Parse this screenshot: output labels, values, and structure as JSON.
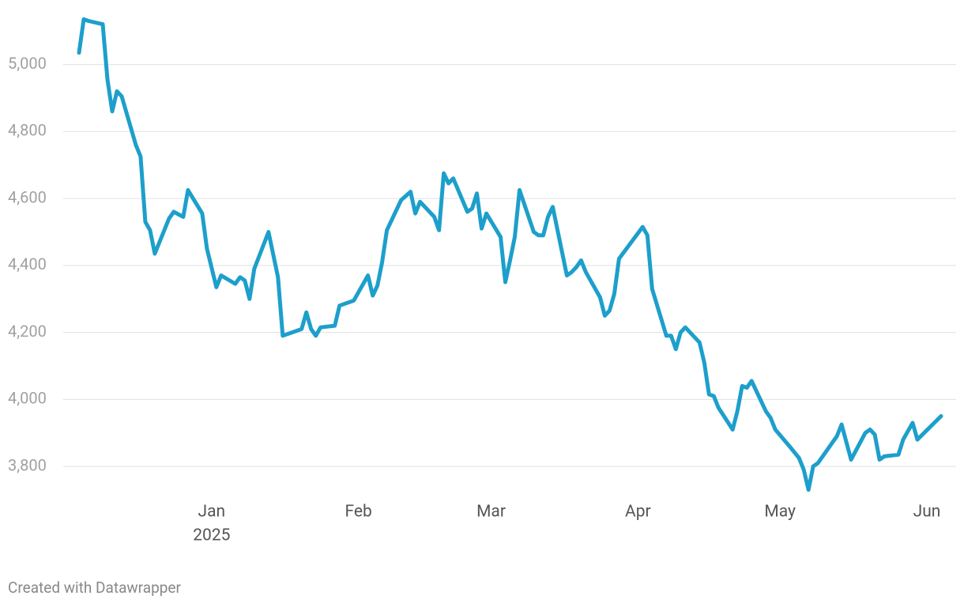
{
  "chart_data": {
    "type": "line",
    "x": [
      "2024-12-04",
      "2024-12-05",
      "2024-12-06",
      "2024-12-09",
      "2024-12-10",
      "2024-12-11",
      "2024-12-12",
      "2024-12-13",
      "2024-12-16",
      "2024-12-17",
      "2024-12-18",
      "2024-12-19",
      "2024-12-20",
      "2024-12-23",
      "2024-12-24",
      "2024-12-26",
      "2024-12-27",
      "2024-12-30",
      "2024-12-31",
      "2025-01-02",
      "2025-01-03",
      "2025-01-06",
      "2025-01-07",
      "2025-01-08",
      "2025-01-09",
      "2025-01-10",
      "2025-01-13",
      "2025-01-15",
      "2025-01-16",
      "2025-01-20",
      "2025-01-21",
      "2025-01-22",
      "2025-01-23",
      "2025-01-24",
      "2025-01-27",
      "2025-01-28",
      "2025-01-31",
      "2025-02-03",
      "2025-02-04",
      "2025-02-05",
      "2025-02-06",
      "2025-02-07",
      "2025-02-10",
      "2025-02-12",
      "2025-02-13",
      "2025-02-14",
      "2025-02-17",
      "2025-02-18",
      "2025-02-19",
      "2025-02-20",
      "2025-02-21",
      "2025-02-24",
      "2025-02-25",
      "2025-02-26",
      "2025-02-27",
      "2025-02-28",
      "2025-03-03",
      "2025-03-04",
      "2025-03-05",
      "2025-03-06",
      "2025-03-07",
      "2025-03-10",
      "2025-03-11",
      "2025-03-12",
      "2025-03-13",
      "2025-03-14",
      "2025-03-17",
      "2025-03-18",
      "2025-03-19",
      "2025-03-20",
      "2025-03-21",
      "2025-03-24",
      "2025-03-25",
      "2025-03-26",
      "2025-03-27",
      "2025-03-28",
      "2025-04-02",
      "2025-04-03",
      "2025-04-04",
      "2025-04-07",
      "2025-04-08",
      "2025-04-09",
      "2025-04-10",
      "2025-04-11",
      "2025-04-14",
      "2025-04-15",
      "2025-04-16",
      "2025-04-17",
      "2025-04-18",
      "2025-04-21",
      "2025-04-22",
      "2025-04-23",
      "2025-04-24",
      "2025-04-25",
      "2025-04-28",
      "2025-04-29",
      "2025-04-30",
      "2025-05-03",
      "2025-05-05",
      "2025-05-06",
      "2025-05-07",
      "2025-05-08",
      "2025-05-09",
      "2025-05-12",
      "2025-05-13",
      "2025-05-14",
      "2025-05-16",
      "2025-05-19",
      "2025-05-20",
      "2025-05-21",
      "2025-05-22",
      "2025-05-23",
      "2025-05-26",
      "2025-05-27",
      "2025-05-29",
      "2025-05-30",
      "2025-06-04"
    ],
    "series": [
      {
        "color": "#1d9fcb",
        "values": [
          5035,
          5135,
          5130,
          5120,
          4955,
          4860,
          4920,
          4905,
          4760,
          4725,
          4530,
          4505,
          4435,
          4540,
          4560,
          4545,
          4625,
          4555,
          4450,
          4335,
          4370,
          4345,
          4365,
          4355,
          4300,
          4390,
          4500,
          4365,
          4190,
          4210,
          4260,
          4210,
          4190,
          4215,
          4220,
          4280,
          4295,
          4370,
          4310,
          4340,
          4410,
          4505,
          4595,
          4620,
          4555,
          4590,
          4545,
          4505,
          4675,
          4645,
          4660,
          4560,
          4570,
          4615,
          4510,
          4555,
          4485,
          4350,
          4415,
          4485,
          4625,
          4500,
          4490,
          4490,
          4545,
          4575,
          4370,
          4380,
          4395,
          4415,
          4380,
          4305,
          4250,
          4265,
          4315,
          4420,
          4515,
          4490,
          4330,
          4190,
          4190,
          4150,
          4200,
          4215,
          4170,
          4110,
          4015,
          4010,
          3975,
          3910,
          3965,
          4040,
          4035,
          4055,
          3965,
          3945,
          3910,
          3860,
          3825,
          3790,
          3730,
          3800,
          3810,
          3870,
          3890,
          3925,
          3820,
          3900,
          3910,
          3895,
          3820,
          3830,
          3835,
          3880,
          3930,
          3880,
          3950
        ]
      }
    ],
    "xlim": [
      "2024-12-04",
      "2025-06-04"
    ],
    "xticks": [
      {
        "value": "2025-01-01",
        "label": "Jan",
        "sublabel": "2025"
      },
      {
        "value": "2025-02-01",
        "label": "Feb"
      },
      {
        "value": "2025-03-01",
        "label": "Mar"
      },
      {
        "value": "2025-04-01",
        "label": "Apr"
      },
      {
        "value": "2025-05-01",
        "label": "May"
      },
      {
        "value": "2025-06-01",
        "label": "Jun"
      }
    ],
    "ylim": [
      3720,
      5150
    ],
    "yticks": [
      {
        "value": 3800,
        "label": "3,800"
      },
      {
        "value": 4000,
        "label": "4,000"
      },
      {
        "value": 4200,
        "label": "4,200"
      },
      {
        "value": 4400,
        "label": "4,400"
      },
      {
        "value": 4600,
        "label": "4,600"
      },
      {
        "value": 4800,
        "label": "4,800"
      },
      {
        "value": 5000,
        "label": "5,000"
      }
    ],
    "grid": true,
    "footer": "Created with Datawrapper"
  }
}
